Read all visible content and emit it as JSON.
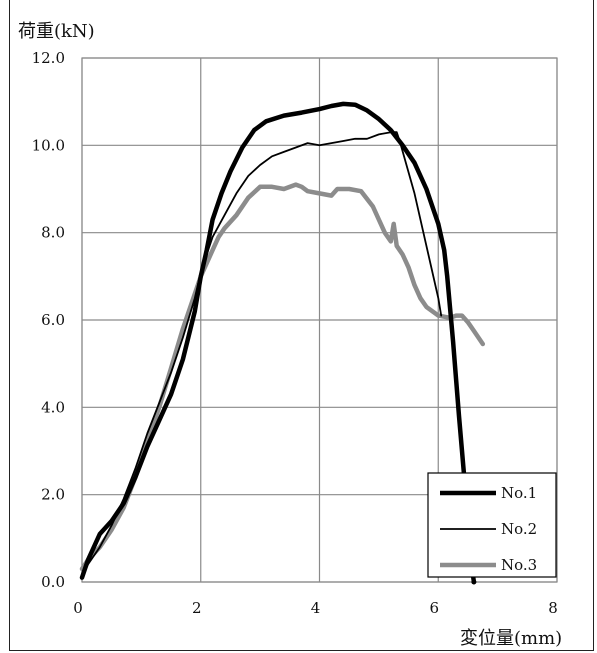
{
  "chart_data": {
    "type": "line",
    "title": "",
    "ylabel": "荷重(kN)",
    "xlabel": "変位量(mm)",
    "xlim": [
      0,
      8
    ],
    "ylim": [
      0,
      12
    ],
    "x_ticks": [
      "0",
      "2",
      "4",
      "6",
      "8"
    ],
    "y_ticks": [
      "0.0",
      "2.0",
      "4.0",
      "6.0",
      "8.0",
      "10.0",
      "12.0"
    ],
    "grid": true,
    "legend_position": "bottom-right",
    "series": [
      {
        "name": "No.1",
        "color": "#000000",
        "weight": "thick",
        "points": [
          [
            0,
            0.1
          ],
          [
            0.1,
            0.5
          ],
          [
            0.3,
            1.1
          ],
          [
            0.5,
            1.4
          ],
          [
            0.7,
            1.8
          ],
          [
            0.9,
            2.4
          ],
          [
            1.1,
            3.1
          ],
          [
            1.3,
            3.7
          ],
          [
            1.5,
            4.3
          ],
          [
            1.7,
            5.1
          ],
          [
            1.9,
            6.2
          ],
          [
            2.0,
            7.0
          ],
          [
            2.1,
            7.6
          ],
          [
            2.2,
            8.3
          ],
          [
            2.35,
            8.9
          ],
          [
            2.5,
            9.4
          ],
          [
            2.7,
            9.95
          ],
          [
            2.9,
            10.35
          ],
          [
            3.1,
            10.55
          ],
          [
            3.4,
            10.68
          ],
          [
            3.7,
            10.75
          ],
          [
            4.0,
            10.83
          ],
          [
            4.2,
            10.9
          ],
          [
            4.4,
            10.95
          ],
          [
            4.6,
            10.93
          ],
          [
            4.8,
            10.8
          ],
          [
            5.0,
            10.6
          ],
          [
            5.2,
            10.35
          ],
          [
            5.4,
            10.0
          ],
          [
            5.6,
            9.6
          ],
          [
            5.8,
            9.0
          ],
          [
            6.0,
            8.2
          ],
          [
            6.1,
            7.6
          ],
          [
            6.15,
            7.0
          ],
          [
            6.25,
            5.5
          ],
          [
            6.35,
            3.8
          ],
          [
            6.45,
            2.2
          ],
          [
            6.55,
            0.5
          ],
          [
            6.6,
            0.0
          ]
        ]
      },
      {
        "name": "No.2",
        "color": "#000000",
        "weight": "thin",
        "points": [
          [
            0,
            0.1
          ],
          [
            0.1,
            0.4
          ],
          [
            0.3,
            0.8
          ],
          [
            0.5,
            1.3
          ],
          [
            0.7,
            1.9
          ],
          [
            0.9,
            2.6
          ],
          [
            1.1,
            3.4
          ],
          [
            1.3,
            4.1
          ],
          [
            1.5,
            4.8
          ],
          [
            1.7,
            5.6
          ],
          [
            1.9,
            6.5
          ],
          [
            2.0,
            7.1
          ],
          [
            2.1,
            7.5
          ],
          [
            2.2,
            7.9
          ],
          [
            2.4,
            8.4
          ],
          [
            2.6,
            8.9
          ],
          [
            2.8,
            9.3
          ],
          [
            3.0,
            9.55
          ],
          [
            3.2,
            9.75
          ],
          [
            3.4,
            9.85
          ],
          [
            3.6,
            9.95
          ],
          [
            3.8,
            10.05
          ],
          [
            4.0,
            10.0
          ],
          [
            4.2,
            10.05
          ],
          [
            4.4,
            10.1
          ],
          [
            4.6,
            10.15
          ],
          [
            4.8,
            10.15
          ],
          [
            5.0,
            10.25
          ],
          [
            5.2,
            10.3
          ],
          [
            5.3,
            10.3
          ],
          [
            5.35,
            10.1
          ],
          [
            5.6,
            8.9
          ],
          [
            5.8,
            7.7
          ],
          [
            6.0,
            6.5
          ],
          [
            6.05,
            6.1
          ]
        ]
      },
      {
        "name": "No.3",
        "color": "#8c8c8c",
        "weight": "thick",
        "points": [
          [
            0,
            0.3
          ],
          [
            0.1,
            0.5
          ],
          [
            0.3,
            0.8
          ],
          [
            0.5,
            1.2
          ],
          [
            0.7,
            1.7
          ],
          [
            0.9,
            2.4
          ],
          [
            1.1,
            3.2
          ],
          [
            1.3,
            4.0
          ],
          [
            1.5,
            4.9
          ],
          [
            1.7,
            5.8
          ],
          [
            1.9,
            6.6
          ],
          [
            2.0,
            7.0
          ],
          [
            2.1,
            7.3
          ],
          [
            2.2,
            7.6
          ],
          [
            2.3,
            7.9
          ],
          [
            2.4,
            8.1
          ],
          [
            2.6,
            8.4
          ],
          [
            2.8,
            8.8
          ],
          [
            3.0,
            9.05
          ],
          [
            3.2,
            9.05
          ],
          [
            3.4,
            9.0
          ],
          [
            3.6,
            9.1
          ],
          [
            3.7,
            9.05
          ],
          [
            3.8,
            8.95
          ],
          [
            4.0,
            8.9
          ],
          [
            4.2,
            8.85
          ],
          [
            4.3,
            9.0
          ],
          [
            4.5,
            9.0
          ],
          [
            4.7,
            8.95
          ],
          [
            4.9,
            8.6
          ],
          [
            5.1,
            8.0
          ],
          [
            5.2,
            7.8
          ],
          [
            5.25,
            8.2
          ],
          [
            5.3,
            7.7
          ],
          [
            5.4,
            7.5
          ],
          [
            5.5,
            7.2
          ],
          [
            5.6,
            6.8
          ],
          [
            5.7,
            6.5
          ],
          [
            5.8,
            6.3
          ],
          [
            6.0,
            6.1
          ],
          [
            6.2,
            6.05
          ],
          [
            6.3,
            6.1
          ],
          [
            6.4,
            6.1
          ],
          [
            6.5,
            5.95
          ],
          [
            6.6,
            5.75
          ],
          [
            6.75,
            5.45
          ]
        ]
      }
    ]
  }
}
